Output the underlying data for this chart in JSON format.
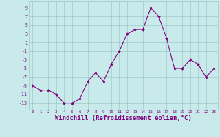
{
  "hours": [
    0,
    1,
    2,
    3,
    4,
    5,
    6,
    7,
    8,
    9,
    10,
    11,
    12,
    13,
    14,
    15,
    16,
    17,
    18,
    19,
    20,
    21,
    22,
    23
  ],
  "values": [
    -9,
    -10,
    -10,
    -11,
    -13,
    -13,
    -12,
    -8,
    -6,
    -8,
    -4,
    -1,
    3,
    4,
    4,
    9,
    7,
    2,
    -5,
    -5,
    -3,
    -4,
    -7,
    -5
  ],
  "line_color": "#800080",
  "marker": "D",
  "marker_size": 1.8,
  "bg_color": "#c8eaea",
  "grid_color": "#a0c8c8",
  "xlabel": "Windchill (Refroidissement éolien,°C)",
  "xlabel_fontsize": 6.5,
  "ytick_labels": [
    "9",
    "7",
    "5",
    "3",
    "1",
    "-1",
    "-3",
    "-5",
    "-7",
    "-9",
    "-11",
    "-13"
  ],
  "ytick_values": [
    9,
    7,
    5,
    3,
    1,
    -1,
    -3,
    -5,
    -7,
    -9,
    -11,
    -13
  ],
  "xticks": [
    0,
    1,
    2,
    3,
    4,
    5,
    6,
    7,
    8,
    9,
    10,
    11,
    12,
    13,
    14,
    15,
    16,
    17,
    18,
    19,
    20,
    21,
    22,
    23
  ],
  "ylim": [
    -14.5,
    10.5
  ],
  "xlim": [
    -0.5,
    23.5
  ]
}
